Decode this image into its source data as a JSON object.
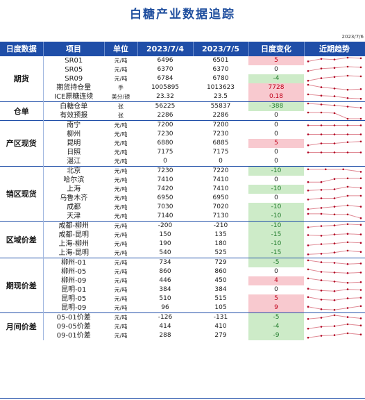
{
  "title": "白糖产业数据追踪",
  "report_date": "2023/7/6",
  "headers": [
    "日度数据",
    "项目",
    "单位",
    "2023/7/4",
    "2023/7/5",
    "日度变化",
    "近期趋势"
  ],
  "colors": {
    "header_bg": "#1f4ea8",
    "title": "#1f4e9e",
    "positive_bg": "#f8c9cf",
    "positive_text": "#c0001a",
    "negative_bg": "#cdebc8",
    "negative_text": "#1f7a2a",
    "spark_line": "#e08a95",
    "spark_point": "#b00020"
  },
  "groups": [
    {
      "name": "期货",
      "rows": [
        {
          "item": "SR01",
          "unit": "元/吨",
          "v1": "6496",
          "v2": "6501",
          "change": "5",
          "dir": "pos",
          "trend": [
            0.4,
            0.8,
            0.7,
            1.0,
            0.9
          ]
        },
        {
          "item": "SR05",
          "unit": "元/吨",
          "v1": "6370",
          "v2": "6370",
          "change": "0",
          "dir": "zero",
          "trend": [
            0.3,
            0.7,
            0.8,
            1.0,
            0.9
          ]
        },
        {
          "item": "SR09",
          "unit": "元/吨",
          "v1": "6784",
          "v2": "6780",
          "change": "-4",
          "dir": "neg",
          "trend": [
            0.2,
            0.6,
            0.8,
            1.0,
            0.9
          ]
        },
        {
          "item": "期货持仓量",
          "unit": "手",
          "v1": "1005895",
          "v2": "1013623",
          "change": "7728",
          "dir": "pos",
          "trend": [
            1.0,
            0.6,
            0.4,
            0.2,
            0.3
          ]
        },
        {
          "item": "ICE原糖连续",
          "unit": "美分/磅",
          "v1": "23.32",
          "v2": "23.5",
          "change": "0.18",
          "dir": "pos",
          "trend": [
            0.9,
            0.7,
            0.6,
            0.3,
            0.2
          ]
        }
      ]
    },
    {
      "name": "仓单",
      "rows": [
        {
          "item": "白糖仓单",
          "unit": "张",
          "v1": "56225",
          "v2": "55837",
          "change": "-388",
          "dir": "neg",
          "trend": [
            1.0,
            0.85,
            0.7,
            0.5,
            0.3
          ]
        },
        {
          "item": "有效预报",
          "unit": "张",
          "v1": "2286",
          "v2": "2286",
          "change": "0",
          "dir": "zero",
          "trend": [
            1.0,
            1.0,
            0.9,
            0.0,
            0.0
          ]
        }
      ]
    },
    {
      "name": "产区现货",
      "rows": [
        {
          "item": "南宁",
          "unit": "元/吨",
          "v1": "7200",
          "v2": "7200",
          "change": "0",
          "dir": "zero",
          "trend": [
            0.5,
            0.5,
            0.5,
            0.5,
            0.5
          ]
        },
        {
          "item": "柳州",
          "unit": "元/吨",
          "v1": "7230",
          "v2": "7230",
          "change": "0",
          "dir": "zero",
          "trend": [
            0.5,
            0.5,
            0.5,
            0.5,
            0.5
          ]
        },
        {
          "item": "昆明",
          "unit": "元/吨",
          "v1": "6880",
          "v2": "6885",
          "change": "5",
          "dir": "pos",
          "trend": [
            0.2,
            0.5,
            0.5,
            0.7,
            0.8
          ]
        },
        {
          "item": "日照",
          "unit": "元/吨",
          "v1": "7175",
          "v2": "7175",
          "change": "0",
          "dir": "zero",
          "trend": [
            0.5,
            0.5,
            0.5,
            0.5,
            0.5
          ]
        },
        {
          "item": "湛江",
          "unit": "元/吨",
          "v1": "0",
          "v2": "0",
          "change": "0",
          "dir": "zero",
          "trend": []
        }
      ]
    },
    {
      "name": "销区现货",
      "rows": [
        {
          "item": "北京",
          "unit": "元/吨",
          "v1": "7230",
          "v2": "7220",
          "change": "-10",
          "dir": "neg",
          "trend": [
            0.8,
            0.8,
            0.8,
            0.4
          ]
        },
        {
          "item": "哈尔滨",
          "unit": "元/吨",
          "v1": "7410",
          "v2": "7410",
          "change": "0",
          "dir": "zero",
          "trend": [
            0.2,
            0.2,
            0.7,
            0.8,
            0.8
          ]
        },
        {
          "item": "上海",
          "unit": "元/吨",
          "v1": "7420",
          "v2": "7410",
          "change": "-10",
          "dir": "neg",
          "trend": [
            0.3,
            0.4,
            0.5,
            0.9,
            0.7
          ]
        },
        {
          "item": "乌鲁木齐",
          "unit": "元/吨",
          "v1": "6950",
          "v2": "6950",
          "change": "0",
          "dir": "zero",
          "trend": [
            0.3,
            0.5,
            0.5,
            0.9,
            0.9
          ]
        },
        {
          "item": "成都",
          "unit": "元/吨",
          "v1": "7030",
          "v2": "7020",
          "change": "-10",
          "dir": "neg",
          "trend": [
            0.2,
            0.4,
            0.6,
            0.8,
            0.6
          ]
        },
        {
          "item": "天津",
          "unit": "元/吨",
          "v1": "7140",
          "v2": "7130",
          "change": "-10",
          "dir": "neg",
          "trend": [
            0.9,
            0.9,
            0.8,
            0.8,
            0.2
          ]
        }
      ]
    },
    {
      "name": "区域价差",
      "rows": [
        {
          "item": "成都-柳州",
          "unit": "元/吨",
          "v1": "-200",
          "v2": "-210",
          "change": "-10",
          "dir": "neg",
          "trend": [
            0.3,
            0.5,
            0.6,
            0.8,
            0.7
          ]
        },
        {
          "item": "成都-昆明",
          "unit": "元/吨",
          "v1": "150",
          "v2": "135",
          "change": "-15",
          "dir": "neg",
          "trend": [
            0.5,
            0.4,
            0.6,
            0.7,
            0.6
          ]
        },
        {
          "item": "上海-柳州",
          "unit": "元/吨",
          "v1": "190",
          "v2": "180",
          "change": "-10",
          "dir": "neg",
          "trend": [
            0.3,
            0.5,
            0.6,
            0.8,
            0.7
          ]
        },
        {
          "item": "上海-昆明",
          "unit": "元/吨",
          "v1": "540",
          "v2": "525",
          "change": "-15",
          "dir": "neg",
          "trend": [
            0.3,
            0.4,
            0.6,
            0.9,
            0.7
          ]
        }
      ]
    },
    {
      "name": "期现价差",
      "rows": [
        {
          "item": "柳州-01",
          "unit": "元/吨",
          "v1": "734",
          "v2": "729",
          "change": "-5",
          "dir": "neg",
          "trend": [
            0.9,
            0.6,
            0.5,
            0.3,
            0.4
          ]
        },
        {
          "item": "柳州-05",
          "unit": "元/吨",
          "v1": "860",
          "v2": "860",
          "change": "0",
          "dir": "zero",
          "trend": [
            0.9,
            0.5,
            0.4,
            0.3,
            0.4
          ]
        },
        {
          "item": "柳州-09",
          "unit": "元/吨",
          "v1": "446",
          "v2": "450",
          "change": "4",
          "dir": "pos",
          "trend": [
            0.9,
            0.6,
            0.4,
            0.2,
            0.3
          ]
        },
        {
          "item": "昆明-01",
          "unit": "元/吨",
          "v1": "384",
          "v2": "384",
          "change": "0",
          "dir": "zero",
          "trend": [
            0.7,
            0.4,
            0.3,
            0.6,
            0.5
          ]
        },
        {
          "item": "昆明-05",
          "unit": "元/吨",
          "v1": "510",
          "v2": "515",
          "change": "5",
          "dir": "pos",
          "trend": [
            0.8,
            0.4,
            0.3,
            0.6,
            0.7
          ]
        },
        {
          "item": "昆明-09",
          "unit": "元/吨",
          "v1": "96",
          "v2": "105",
          "change": "9",
          "dir": "pos",
          "trend": [
            0.7,
            0.3,
            0.2,
            0.5,
            0.8
          ]
        }
      ]
    },
    {
      "name": "月间价差",
      "rows": [
        {
          "item": "05-01价差",
          "unit": "元/吨",
          "v1": "-126",
          "v2": "-131",
          "change": "-5",
          "dir": "neg",
          "trend": [
            0.3,
            0.5,
            0.9,
            0.6,
            0.4
          ]
        },
        {
          "item": "09-05价差",
          "unit": "元/吨",
          "v1": "414",
          "v2": "410",
          "change": "-4",
          "dir": "neg",
          "trend": [
            0.2,
            0.5,
            0.6,
            0.9,
            0.7
          ]
        },
        {
          "item": "09-01价差",
          "unit": "元/吨",
          "v1": "288",
          "v2": "279",
          "change": "-9",
          "dir": "neg",
          "trend": [
            0.2,
            0.5,
            0.6,
            0.9,
            0.7
          ]
        }
      ]
    }
  ]
}
